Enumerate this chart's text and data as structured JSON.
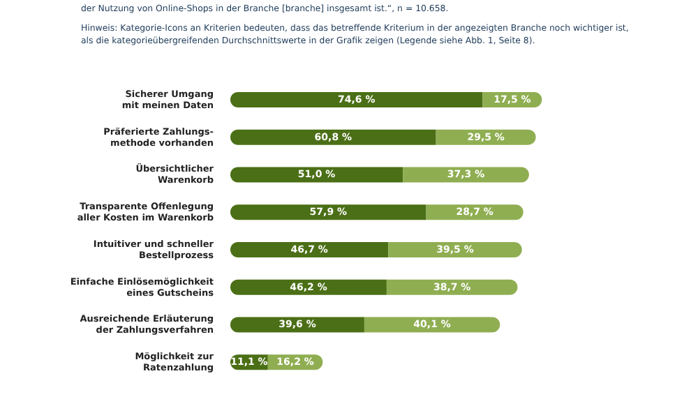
{
  "chart_data": {
    "type": "bar",
    "orientation": "horizontal",
    "stacked": true,
    "annotations": [
      "der Nutzung von Online-Shops in der Branche [branche] insgesamt ist.“, n = 10.658.",
      "Hinweis: Kategorie-Icons an Kriterien bedeuten, dass das betreffende Kriterium in der angezeigten Branche noch wichtiger ist, als die kategorieübergreifenden Durchschnittswerte in der Grafik zeigen (Legende siehe Abb. 1, Seite 8)."
    ],
    "categories": [
      "Sicherer Umgang\nmit meinen Daten",
      "Präferierte Zahlungs-\nmethode vorhanden",
      "Übersichtlicher\nWarenkorb",
      "Transparente Offenlegung\naller Kosten im Warenkorb",
      "Intuitiver und schneller\nBestellprozess",
      "Einfache Einlösemöglichkeit\neines Gutscheins",
      "Ausreichende Erläuterung\nder Zahlungsverfahren",
      "Möglichkeit zur\nRatenzahlung"
    ],
    "series": [
      {
        "color": "#4b6f16",
        "values": [
          74.6,
          60.8,
          51.0,
          57.9,
          46.7,
          46.2,
          39.6,
          11.1
        ],
        "value_labels": [
          "74,6 %",
          "60,8 %",
          "51,0 %",
          "57,9 %",
          "46,7 %",
          "46,2 %",
          "39,6 %",
          "11,1 %"
        ]
      },
      {
        "color": "#8fae52",
        "values": [
          17.5,
          29.5,
          37.3,
          28.7,
          39.5,
          38.7,
          40.1,
          16.2
        ],
        "value_labels": [
          "17,5 %",
          "29,5 %",
          "37,3 %",
          "28,7 %",
          "39,5 %",
          "38,7 %",
          "40,1 %",
          "16,2 %"
        ]
      }
    ]
  }
}
